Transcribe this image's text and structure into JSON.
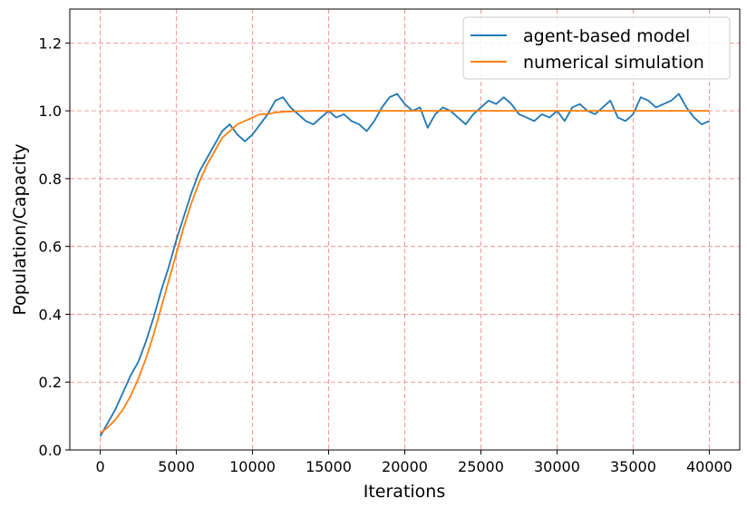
{
  "chart_data": {
    "type": "line",
    "title": "",
    "xlabel": "Iterations",
    "ylabel": "Population/Capacity",
    "xlim": [
      -2000,
      42000
    ],
    "ylim": [
      0.0,
      1.3
    ],
    "xticks": [
      0,
      5000,
      10000,
      15000,
      20000,
      25000,
      30000,
      35000,
      40000
    ],
    "xtick_labels": [
      "0",
      "5000",
      "10000",
      "15000",
      "20000",
      "25000",
      "30000",
      "35000",
      "40000"
    ],
    "yticks": [
      0.0,
      0.2,
      0.4,
      0.6,
      0.8,
      1.0,
      1.2
    ],
    "ytick_labels": [
      "0.0",
      "0.2",
      "0.4",
      "0.6",
      "0.8",
      "1.0",
      "1.2"
    ],
    "grid": true,
    "grid_color": "#f08080",
    "legend_position": "top-right",
    "series": [
      {
        "name": "agent-based model",
        "color": "#1f77b4",
        "x": [
          0,
          500,
          1000,
          1500,
          2000,
          2500,
          3000,
          3500,
          4000,
          4500,
          5000,
          5500,
          6000,
          6500,
          7000,
          7500,
          8000,
          8500,
          9000,
          9500,
          10000,
          10500,
          11000,
          11500,
          12000,
          12500,
          13000,
          13500,
          14000,
          14500,
          15000,
          15500,
          16000,
          16500,
          17000,
          17500,
          18000,
          18500,
          19000,
          19500,
          20000,
          20500,
          21000,
          21500,
          22000,
          22500,
          23000,
          23500,
          24000,
          24500,
          25000,
          25500,
          26000,
          26500,
          27000,
          27500,
          28000,
          28500,
          29000,
          29500,
          30000,
          30500,
          31000,
          31500,
          32000,
          32500,
          33000,
          33500,
          34000,
          34500,
          35000,
          35500,
          36000,
          36500,
          37000,
          37500,
          38000,
          38500,
          39000,
          39500,
          40000
        ],
        "y": [
          0.04,
          0.08,
          0.12,
          0.17,
          0.22,
          0.26,
          0.32,
          0.39,
          0.47,
          0.54,
          0.62,
          0.69,
          0.76,
          0.82,
          0.86,
          0.9,
          0.94,
          0.96,
          0.93,
          0.91,
          0.93,
          0.96,
          0.99,
          1.03,
          1.04,
          1.01,
          0.99,
          0.97,
          0.96,
          0.98,
          1.0,
          0.98,
          0.99,
          0.97,
          0.96,
          0.94,
          0.97,
          1.01,
          1.04,
          1.05,
          1.02,
          1.0,
          1.01,
          0.95,
          0.99,
          1.01,
          1.0,
          0.98,
          0.96,
          0.99,
          1.01,
          1.03,
          1.02,
          1.04,
          1.02,
          0.99,
          0.98,
          0.97,
          0.99,
          0.98,
          1.0,
          0.97,
          1.01,
          1.02,
          1.0,
          0.99,
          1.01,
          1.03,
          0.98,
          0.97,
          0.99,
          1.04,
          1.03,
          1.01,
          1.02,
          1.03,
          1.05,
          1.01,
          0.98,
          0.96,
          0.97
        ]
      },
      {
        "name": "numerical simulation",
        "color": "#ff7f0e",
        "x": [
          0,
          500,
          1000,
          1500,
          2000,
          2500,
          3000,
          3500,
          4000,
          4500,
          5000,
          5500,
          6000,
          6500,
          7000,
          7500,
          8000,
          8500,
          9000,
          9500,
          10000,
          10500,
          11000,
          11500,
          12000,
          12500,
          13000,
          14000,
          15000,
          16000,
          18000,
          20000,
          25000,
          30000,
          35000,
          40000
        ],
        "y": [
          0.05,
          0.066,
          0.09,
          0.12,
          0.16,
          0.21,
          0.27,
          0.34,
          0.42,
          0.5,
          0.58,
          0.66,
          0.73,
          0.79,
          0.84,
          0.88,
          0.92,
          0.94,
          0.96,
          0.97,
          0.98,
          0.99,
          0.99,
          0.995,
          0.997,
          0.998,
          0.999,
          1.0,
          1.0,
          1.0,
          1.0,
          1.0,
          1.0,
          1.0,
          1.0,
          1.0
        ]
      }
    ]
  }
}
